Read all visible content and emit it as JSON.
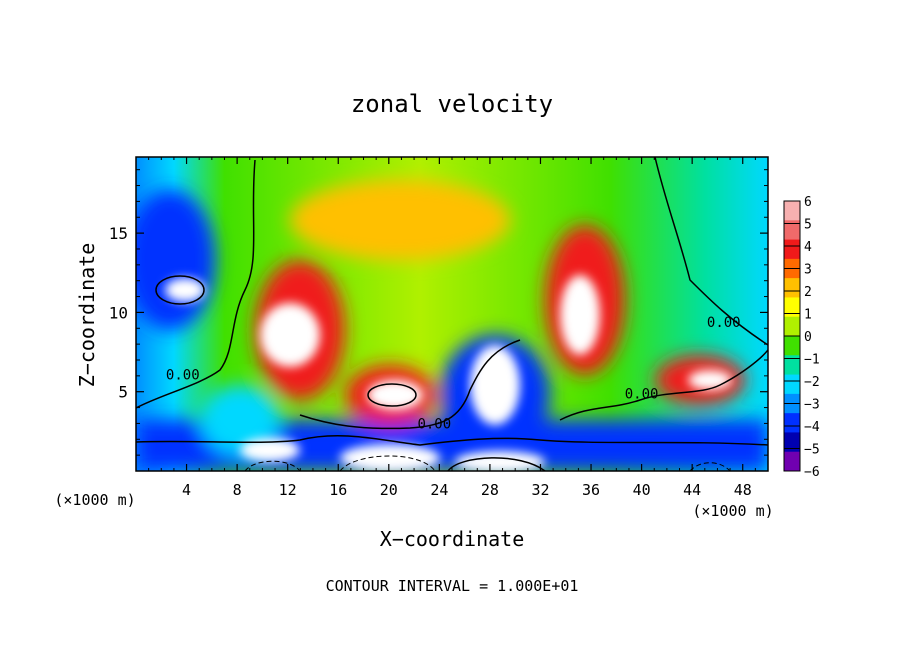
{
  "chart_data": {
    "type": "heatmap",
    "title": "zonal velocity",
    "xlabel": "X−coordinate",
    "ylabel": "Z−coordinate",
    "x_unit_label": "(×1000 m)",
    "y_unit_label": "(×1000 m)",
    "xlim": [
      0,
      50
    ],
    "ylim": [
      0,
      19.8
    ],
    "x_ticks": [
      4,
      8,
      12,
      16,
      20,
      24,
      28,
      32,
      36,
      40,
      44,
      48
    ],
    "y_ticks": [
      5,
      10,
      15
    ],
    "colorbar": {
      "ticks": [
        6,
        5,
        4,
        3,
        2,
        1,
        0,
        -1,
        -2,
        -3,
        -4,
        -5,
        -6
      ],
      "colors": [
        "#f7b0b0",
        "#f06a6a",
        "#f01a1a",
        "#ff6a00",
        "#ffc000",
        "#ffff00",
        "#b0f000",
        "#40e000",
        "#00e0a0",
        "#00d8ff",
        "#0090ff",
        "#0030ff",
        "#0000b0",
        "#7000b0"
      ]
    },
    "contour_labels": [
      {
        "text": "0.00",
        "x": 3.7,
        "y": 6.1
      },
      {
        "text": "0.00",
        "x": 23.6,
        "y": 3.0
      },
      {
        "text": "0.00",
        "x": 40.0,
        "y": 4.9
      },
      {
        "text": "0.00",
        "x": 46.5,
        "y": 9.4
      }
    ],
    "footer": "CONTOUR INTERVAL = 1.000E+01"
  }
}
